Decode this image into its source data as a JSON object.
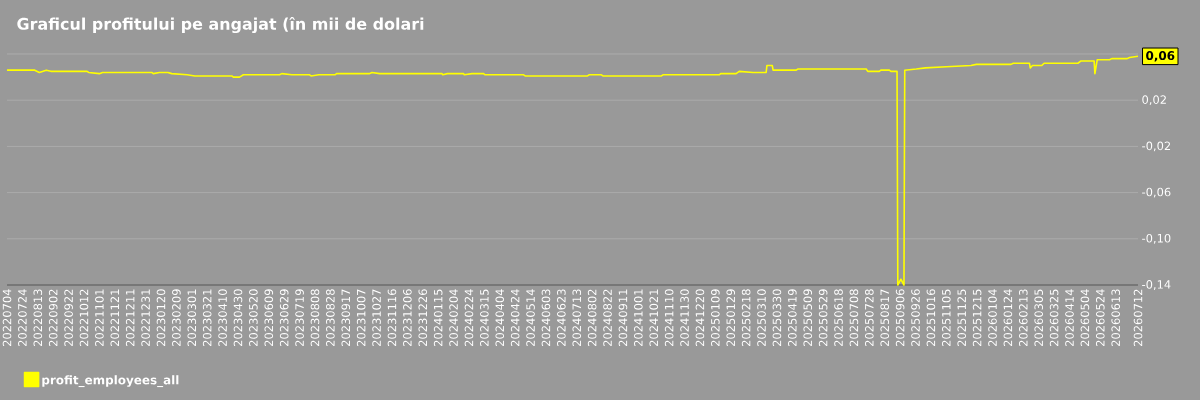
{
  "chart_data": {
    "type": "line",
    "title": "Graficul profitului pe angajat (în mii de dolari",
    "x": [
      "2022-07-04",
      "2022-08-09",
      "2022-08-15",
      "2022-08-24",
      "2022-08-30",
      "2022-10-16",
      "2022-10-18",
      "2022-11-01",
      "2022-11-05",
      "2023-01-08",
      "2023-01-10",
      "2023-01-18",
      "2023-01-29",
      "2023-02-03",
      "2023-02-23",
      "2023-03-05",
      "2023-04-22",
      "2023-04-24",
      "2023-05-02",
      "2023-05-07",
      "2023-06-23",
      "2023-06-26",
      "2023-07-09",
      "2023-08-01",
      "2023-08-03",
      "2023-08-13",
      "2023-09-03",
      "2023-09-05",
      "2023-10-18",
      "2023-10-21",
      "2023-10-31",
      "2024-01-20",
      "2024-01-21",
      "2024-01-27",
      "2024-02-17",
      "2024-02-18",
      "2024-02-28",
      "2024-03-14",
      "2024-03-16",
      "2024-05-05",
      "2024-05-07",
      "2024-07-27",
      "2024-07-29",
      "2024-08-14",
      "2024-08-16",
      "2024-10-31",
      "2024-11-02",
      "2025-01-14",
      "2025-01-16",
      "2025-02-05",
      "2025-02-09",
      "2025-02-27",
      "2025-03-16",
      "2025-03-17",
      "2025-03-24",
      "2025-03-25",
      "2025-04-24",
      "2025-04-26",
      "2025-07-24",
      "2025-07-26",
      "2025-08-10",
      "2025-08-12",
      "2025-08-23",
      "2025-08-25",
      "2025-09-02",
      "2025-09-03",
      "2025-09-07",
      "2025-09-11",
      "2025-09-12",
      "2025-09-27",
      "2025-10-09",
      "2025-11-05",
      "2025-12-07",
      "2025-12-14",
      "2026-01-28",
      "2026-01-31",
      "2026-02-21",
      "2026-02-22",
      "2026-02-25",
      "2026-03-09",
      "2026-03-12",
      "2026-04-25",
      "2026-04-29",
      "2026-05-16",
      "2026-05-17",
      "2026-05-20",
      "2026-06-05",
      "2026-06-08",
      "2026-06-28",
      "2026-07-01",
      "2026-07-12"
    ],
    "series": [
      {
        "name": "profit_employees_all",
        "color": "#ffff00",
        "values": [
          0.046,
          0.046,
          0.044,
          0.046,
          0.045,
          0.045,
          0.044,
          0.043,
          0.044,
          0.044,
          0.043,
          0.044,
          0.044,
          0.043,
          0.042,
          0.041,
          0.041,
          0.04,
          0.04,
          0.042,
          0.042,
          0.043,
          0.042,
          0.042,
          0.041,
          0.042,
          0.042,
          0.043,
          0.043,
          0.044,
          0.043,
          0.043,
          0.042,
          0.043,
          0.043,
          0.042,
          0.043,
          0.043,
          0.042,
          0.042,
          0.041,
          0.041,
          0.042,
          0.042,
          0.041,
          0.041,
          0.042,
          0.042,
          0.043,
          0.043,
          0.045,
          0.044,
          0.044,
          0.05,
          0.05,
          0.046,
          0.046,
          0.047,
          0.047,
          0.045,
          0.045,
          0.046,
          0.046,
          0.045,
          0.045,
          -0.14,
          -0.135,
          -0.14,
          0.046,
          0.047,
          0.048,
          0.049,
          0.05,
          0.051,
          0.051,
          0.052,
          0.052,
          0.048,
          0.05,
          0.05,
          0.052,
          0.052,
          0.054,
          0.054,
          0.043,
          0.055,
          0.055,
          0.056,
          0.056,
          0.057,
          0.058
        ]
      }
    ],
    "xlim": [
      "2022-07-04",
      "2026-07-12"
    ],
    "xticks": [
      {
        "value": "2022-07-04",
        "label": "20220704"
      },
      {
        "value": "2022-07-24",
        "label": "20220724"
      },
      {
        "value": "2022-08-13",
        "label": "20220813"
      },
      {
        "value": "2022-09-02",
        "label": "20220902"
      },
      {
        "value": "2022-09-22",
        "label": "20220922"
      },
      {
        "value": "2022-10-12",
        "label": "20221012"
      },
      {
        "value": "2022-11-01",
        "label": "20221101"
      },
      {
        "value": "2022-11-21",
        "label": "20221121"
      },
      {
        "value": "2022-12-11",
        "label": "20221211"
      },
      {
        "value": "2022-12-31",
        "label": "20221231"
      },
      {
        "value": "2023-01-20",
        "label": "20230120"
      },
      {
        "value": "2023-02-09",
        "label": "20230209"
      },
      {
        "value": "2023-03-01",
        "label": "20230301"
      },
      {
        "value": "2023-03-21",
        "label": "20230321"
      },
      {
        "value": "2023-04-10",
        "label": "20230410"
      },
      {
        "value": "2023-04-30",
        "label": "20230430"
      },
      {
        "value": "2023-05-20",
        "label": "20230520"
      },
      {
        "value": "2023-06-09",
        "label": "20230609"
      },
      {
        "value": "2023-06-29",
        "label": "20230629"
      },
      {
        "value": "2023-07-19",
        "label": "20230719"
      },
      {
        "value": "2023-08-08",
        "label": "20230808"
      },
      {
        "value": "2023-08-28",
        "label": "20230828"
      },
      {
        "value": "2023-09-17",
        "label": "20230917"
      },
      {
        "value": "2023-10-07",
        "label": "20231007"
      },
      {
        "value": "2023-10-27",
        "label": "20231027"
      },
      {
        "value": "2023-11-16",
        "label": "20231116"
      },
      {
        "value": "2023-12-06",
        "label": "20231206"
      },
      {
        "value": "2023-12-26",
        "label": "20231226"
      },
      {
        "value": "2024-01-15",
        "label": "20240115"
      },
      {
        "value": "2024-02-04",
        "label": "20240204"
      },
      {
        "value": "2024-02-24",
        "label": "20240224"
      },
      {
        "value": "2024-03-15",
        "label": "20240315"
      },
      {
        "value": "2024-04-04",
        "label": "20240404"
      },
      {
        "value": "2024-04-24",
        "label": "20240424"
      },
      {
        "value": "2024-05-14",
        "label": "20240514"
      },
      {
        "value": "2024-06-03",
        "label": "20240603"
      },
      {
        "value": "2024-06-23",
        "label": "20240623"
      },
      {
        "value": "2024-07-13",
        "label": "20240713"
      },
      {
        "value": "2024-08-02",
        "label": "20240802"
      },
      {
        "value": "2024-08-22",
        "label": "20240822"
      },
      {
        "value": "2024-09-11",
        "label": "20240911"
      },
      {
        "value": "2024-10-01",
        "label": "20241001"
      },
      {
        "value": "2024-10-21",
        "label": "20241021"
      },
      {
        "value": "2024-11-10",
        "label": "20241110"
      },
      {
        "value": "2024-11-30",
        "label": "20241130"
      },
      {
        "value": "2024-12-20",
        "label": "20241220"
      },
      {
        "value": "2025-01-09",
        "label": "20250109"
      },
      {
        "value": "2025-01-29",
        "label": "20250129"
      },
      {
        "value": "2025-02-18",
        "label": "20250218"
      },
      {
        "value": "2025-03-10",
        "label": "20250310"
      },
      {
        "value": "2025-03-30",
        "label": "20250330"
      },
      {
        "value": "2025-04-19",
        "label": "20250419"
      },
      {
        "value": "2025-05-09",
        "label": "20250509"
      },
      {
        "value": "2025-05-29",
        "label": "20250529"
      },
      {
        "value": "2025-06-18",
        "label": "20250618"
      },
      {
        "value": "2025-07-08",
        "label": "20250708"
      },
      {
        "value": "2025-07-28",
        "label": "20250728"
      },
      {
        "value": "2025-08-17",
        "label": "20250817"
      },
      {
        "value": "2025-09-06",
        "label": "20250906"
      },
      {
        "value": "2025-09-26",
        "label": "20250926"
      },
      {
        "value": "2025-10-16",
        "label": "20251016"
      },
      {
        "value": "2025-11-05",
        "label": "20251105"
      },
      {
        "value": "2025-11-25",
        "label": "20251125"
      },
      {
        "value": "2025-12-15",
        "label": "20251215"
      },
      {
        "value": "2026-01-04",
        "label": "20260104"
      },
      {
        "value": "2026-01-24",
        "label": "20260124"
      },
      {
        "value": "2026-02-13",
        "label": "20260213"
      },
      {
        "value": "2026-03-05",
        "label": "20260305"
      },
      {
        "value": "2026-03-25",
        "label": "20260325"
      },
      {
        "value": "2026-04-14",
        "label": "20260414"
      },
      {
        "value": "2026-05-04",
        "label": "20260504"
      },
      {
        "value": "2026-05-24",
        "label": "20260524"
      },
      {
        "value": "2026-06-13",
        "label": "20260613"
      },
      {
        "value": "2026-07-12",
        "label": "20260712"
      }
    ],
    "ylim": [
      -0.14,
      0.06
    ],
    "yticks": [
      {
        "value": 0.06,
        "label": null
      },
      {
        "value": 0.02,
        "label": "0,02"
      },
      {
        "value": -0.02,
        "label": "-0,02"
      },
      {
        "value": -0.06,
        "label": "-0,06"
      },
      {
        "value": -0.1,
        "label": "-0,10"
      },
      {
        "value": -0.14,
        "label": "-0,14"
      }
    ],
    "grid": "y",
    "legend": "bottom left",
    "annotations": [
      {
        "text": "0,06",
        "x": "2026-07-12",
        "y": 0.058
      }
    ]
  }
}
